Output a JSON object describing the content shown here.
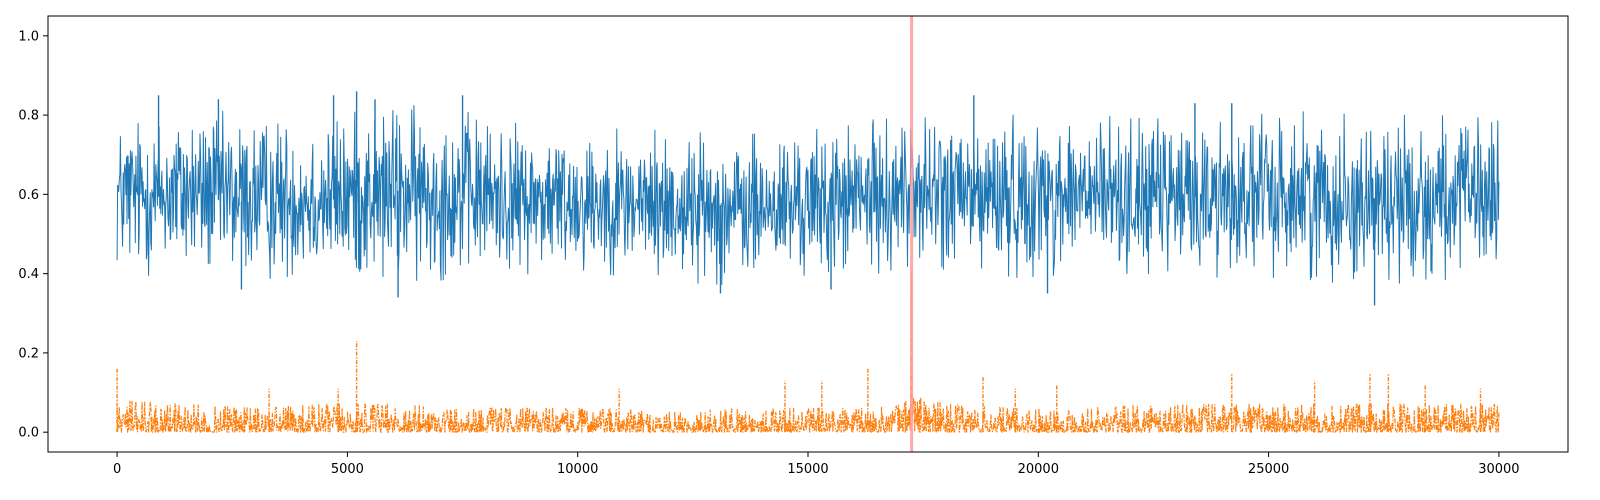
{
  "chart_data": {
    "type": "line",
    "title": "",
    "xlabel": "",
    "ylabel": "",
    "xlim": [
      -1500,
      31500
    ],
    "ylim": [
      -0.05,
      1.05
    ],
    "grid": false,
    "legend": "none",
    "x_ticks": [
      0,
      5000,
      10000,
      15000,
      20000,
      25000,
      30000
    ],
    "x_tick_labels": [
      "0",
      "5000",
      "10000",
      "15000",
      "20000",
      "25000",
      "30000"
    ],
    "y_ticks": [
      0.0,
      0.2,
      0.4,
      0.6,
      0.8,
      1.0
    ],
    "y_tick_labels": [
      "0.0",
      "0.2",
      "0.4",
      "0.6",
      "0.8",
      "1.0"
    ],
    "n_points": 30000,
    "marker_line": {
      "x": 17250,
      "color": "#ff9999"
    },
    "series": [
      {
        "style": "solid",
        "color": "#1f77b4",
        "x": [
          0,
          1500,
          3000,
          4500,
          6000,
          7500,
          9000,
          10500,
          12000,
          13500,
          15000,
          16500,
          17200,
          17250,
          17300,
          18000,
          19500,
          21000,
          22500,
          24000,
          25500,
          27000,
          28500,
          30000
        ],
        "band_low": [
          0.4,
          0.39,
          0.38,
          0.39,
          0.37,
          0.39,
          0.4,
          0.4,
          0.38,
          0.37,
          0.39,
          0.4,
          0.42,
          0.44,
          0.42,
          0.4,
          0.39,
          0.4,
          0.4,
          0.39,
          0.39,
          0.37,
          0.38,
          0.4
        ],
        "band_high": [
          0.79,
          0.82,
          0.8,
          0.79,
          0.83,
          0.81,
          0.77,
          0.77,
          0.76,
          0.75,
          0.76,
          0.79,
          0.79,
          1.0,
          0.79,
          0.8,
          0.8,
          0.8,
          0.79,
          0.8,
          0.81,
          0.8,
          0.8,
          0.79
        ],
        "peaks": [
          {
            "x": 900,
            "y": 0.85
          },
          {
            "x": 2200,
            "y": 0.84
          },
          {
            "x": 4700,
            "y": 0.85
          },
          {
            "x": 5200,
            "y": 0.86
          },
          {
            "x": 5600,
            "y": 0.84
          },
          {
            "x": 7500,
            "y": 0.85
          },
          {
            "x": 18600,
            "y": 0.85
          },
          {
            "x": 23400,
            "y": 0.83
          },
          {
            "x": 24200,
            "y": 0.83
          }
        ],
        "troughs": [
          {
            "x": 2700,
            "y": 0.36
          },
          {
            "x": 6100,
            "y": 0.34
          },
          {
            "x": 13100,
            "y": 0.35
          },
          {
            "x": 15500,
            "y": 0.36
          },
          {
            "x": 20200,
            "y": 0.35
          },
          {
            "x": 27300,
            "y": 0.32
          }
        ]
      },
      {
        "style": "dashdot",
        "color": "#ff7f0e",
        "x": [
          0,
          1500,
          3000,
          4500,
          6000,
          7500,
          9000,
          10500,
          12000,
          13500,
          15000,
          16500,
          17200,
          17250,
          17300,
          18000,
          19500,
          21000,
          22500,
          24000,
          25500,
          27000,
          28500,
          30000
        ],
        "band_low": [
          0,
          0,
          0,
          0,
          0,
          0,
          0,
          0,
          0,
          0,
          0,
          0,
          0,
          0,
          0,
          0,
          0,
          0,
          0,
          0,
          0,
          0,
          0,
          0
        ],
        "band_high": [
          0.08,
          0.07,
          0.06,
          0.07,
          0.07,
          0.06,
          0.06,
          0.06,
          0.05,
          0.06,
          0.06,
          0.06,
          0.08,
          1.0,
          0.09,
          0.07,
          0.06,
          0.06,
          0.07,
          0.07,
          0.07,
          0.07,
          0.07,
          0.07
        ],
        "peaks": [
          {
            "x": 0,
            "y": 0.16
          },
          {
            "x": 3300,
            "y": 0.11
          },
          {
            "x": 4800,
            "y": 0.11
          },
          {
            "x": 5200,
            "y": 0.23
          },
          {
            "x": 10900,
            "y": 0.11
          },
          {
            "x": 14500,
            "y": 0.13
          },
          {
            "x": 15300,
            "y": 0.13
          },
          {
            "x": 16300,
            "y": 0.16
          },
          {
            "x": 18800,
            "y": 0.14
          },
          {
            "x": 19500,
            "y": 0.11
          },
          {
            "x": 20400,
            "y": 0.12
          },
          {
            "x": 24200,
            "y": 0.15
          },
          {
            "x": 26000,
            "y": 0.13
          },
          {
            "x": 27200,
            "y": 0.15
          },
          {
            "x": 27600,
            "y": 0.15
          },
          {
            "x": 28400,
            "y": 0.12
          },
          {
            "x": 29600,
            "y": 0.11
          }
        ],
        "troughs": []
      }
    ]
  }
}
